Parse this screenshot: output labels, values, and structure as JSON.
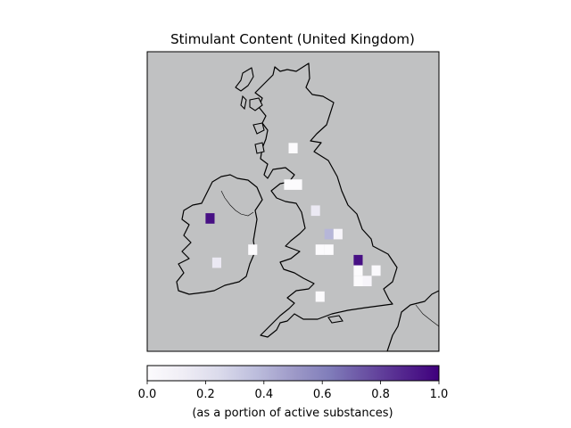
{
  "chart_data": {
    "type": "heatmap",
    "title": "Stimulant Content (United Kingdom)",
    "colorbar": {
      "label": "(as a portion of active substances)",
      "range": [
        0.0,
        1.0
      ],
      "ticks": [
        "0.0",
        "0.2",
        "0.4",
        "0.6",
        "0.8",
        "1.0"
      ],
      "colormap": [
        "#fcfbfd",
        "#efedf5",
        "#dadaeb",
        "#bcbddc",
        "#9e9ac8",
        "#807dba",
        "#6a51a3",
        "#54278f",
        "#3f007d"
      ]
    },
    "map_extent": {
      "lon": [
        -11.0,
        2.0
      ],
      "lat": [
        49.5,
        61.0
      ]
    },
    "cell_size_deg": 0.4,
    "cells": [
      {
        "lon": -4.5,
        "lat": 57.3,
        "value": 0.0
      },
      {
        "lon": -4.7,
        "lat": 55.9,
        "value": 0.0
      },
      {
        "lon": -4.3,
        "lat": 55.9,
        "value": 0.0
      },
      {
        "lon": -3.5,
        "lat": 54.9,
        "value": 0.15
      },
      {
        "lon": -8.2,
        "lat": 54.6,
        "value": 0.95
      },
      {
        "lon": -2.9,
        "lat": 54.0,
        "value": 0.4
      },
      {
        "lon": -2.5,
        "lat": 54.0,
        "value": 0.05
      },
      {
        "lon": -6.3,
        "lat": 53.4,
        "value": 0.0
      },
      {
        "lon": -2.9,
        "lat": 53.4,
        "value": 0.0
      },
      {
        "lon": -3.3,
        "lat": 53.4,
        "value": 0.0
      },
      {
        "lon": -1.6,
        "lat": 53.0,
        "value": 0.95
      },
      {
        "lon": -7.9,
        "lat": 52.9,
        "value": 0.15
      },
      {
        "lon": -1.6,
        "lat": 52.6,
        "value": 0.0
      },
      {
        "lon": -0.8,
        "lat": 52.6,
        "value": 0.02
      },
      {
        "lon": -1.6,
        "lat": 52.2,
        "value": 0.0
      },
      {
        "lon": -1.2,
        "lat": 52.2,
        "value": 0.05
      },
      {
        "lon": -3.3,
        "lat": 51.6,
        "value": 0.0
      }
    ]
  }
}
